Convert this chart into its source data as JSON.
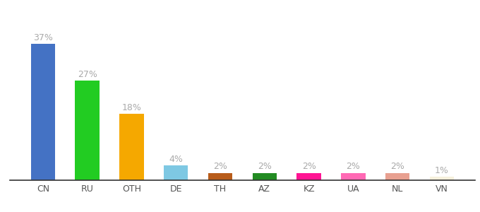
{
  "categories": [
    "CN",
    "RU",
    "OTH",
    "DE",
    "TH",
    "AZ",
    "KZ",
    "UA",
    "NL",
    "VN"
  ],
  "values": [
    37,
    27,
    18,
    4,
    2,
    2,
    2,
    2,
    2,
    1
  ],
  "bar_colors": [
    "#4472c4",
    "#22cc22",
    "#f5a800",
    "#7ec8e3",
    "#b85c1a",
    "#228b22",
    "#ff1493",
    "#ff69b4",
    "#e8a090",
    "#f5f0dc"
  ],
  "label_color": "#aaaaaa",
  "xtick_color": "#555555",
  "ylim": [
    0,
    42
  ],
  "background_color": "#ffffff",
  "bar_width": 0.55,
  "label_fontsize": 9,
  "xtick_fontsize": 9
}
